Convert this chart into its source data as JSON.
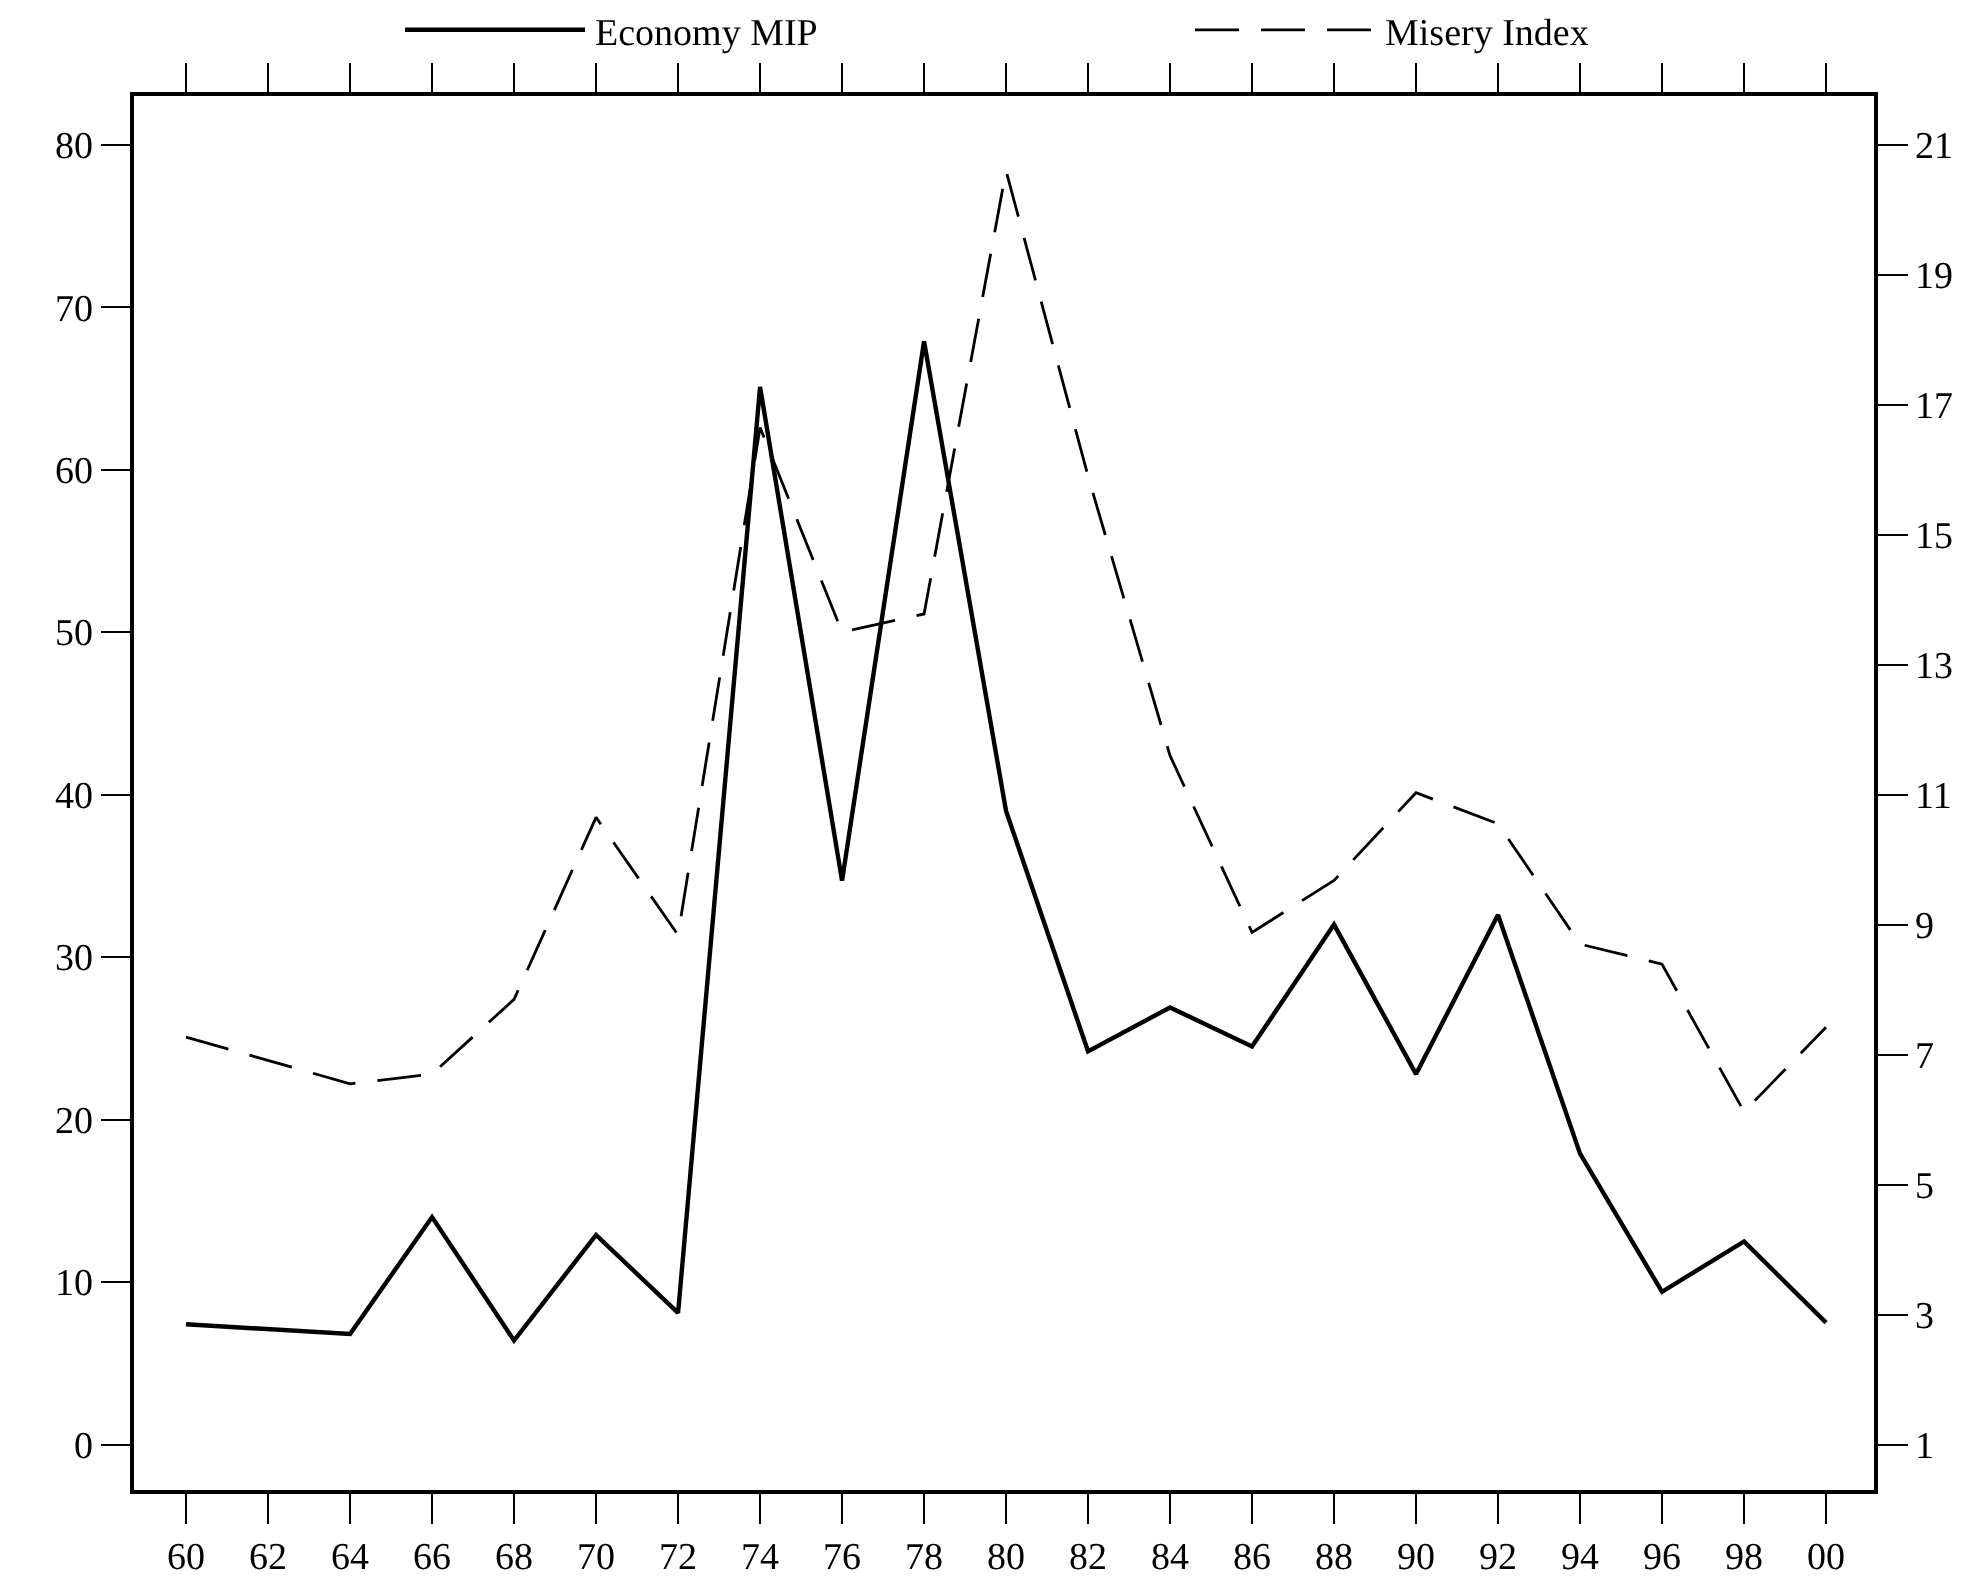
{
  "chart_data": {
    "type": "line",
    "x": [
      1960,
      1964,
      1966,
      1968,
      1970,
      1972,
      1974,
      1976,
      1978,
      1980,
      1982,
      1984,
      1986,
      1988,
      1990,
      1992,
      1994,
      1996,
      1998,
      2000
    ],
    "series": [
      {
        "name": "Economy MIP",
        "color": "#000000",
        "line_style": "solid",
        "values": [
          7.4,
          6.8,
          14.0,
          6.4,
          12.9,
          8.1,
          65.1,
          34.7,
          67.9,
          39.0,
          24.2,
          26.9,
          24.5,
          32.0,
          22.8,
          32.6,
          17.9,
          9.4,
          12.5,
          7.5
        ]
      },
      {
        "name": "Misery Index",
        "color": "#000000",
        "line_style": "dashed",
        "axis": "y2",
        "values": [
          7.27,
          6.55,
          6.7,
          7.85,
          10.65,
          8.84,
          16.65,
          13.5,
          13.78,
          20.6,
          15.9,
          11.6,
          8.88,
          9.68,
          11.03,
          10.55,
          8.7,
          8.39,
          6.12,
          7.42
        ]
      }
    ],
    "xlim": [
      1958.73,
      2001.17
    ],
    "xticks": [
      {
        "value": 1960,
        "label": "60"
      },
      {
        "value": 1962,
        "label": "62"
      },
      {
        "value": 1964,
        "label": "64"
      },
      {
        "value": 1966,
        "label": "66"
      },
      {
        "value": 1968,
        "label": "68"
      },
      {
        "value": 1970,
        "label": "70"
      },
      {
        "value": 1972,
        "label": "72"
      },
      {
        "value": 1974,
        "label": "74"
      },
      {
        "value": 1976,
        "label": "76"
      },
      {
        "value": 1978,
        "label": "78"
      },
      {
        "value": 1980,
        "label": "80"
      },
      {
        "value": 1982,
        "label": "82"
      },
      {
        "value": 1984,
        "label": "84"
      },
      {
        "value": 1986,
        "label": "86"
      },
      {
        "value": 1988,
        "label": "88"
      },
      {
        "value": 1990,
        "label": "90"
      },
      {
        "value": 1992,
        "label": "92"
      },
      {
        "value": 1994,
        "label": "94"
      },
      {
        "value": 1996,
        "label": "96"
      },
      {
        "value": 1998,
        "label": "98"
      },
      {
        "value": 2000,
        "label": "00"
      }
    ],
    "ylim": [
      -2.8,
      83
    ],
    "yticks": [
      0,
      10,
      20,
      30,
      40,
      50,
      60,
      70,
      80
    ],
    "y2lim": [
      0.3,
      21.75
    ],
    "y2ticks": [
      1,
      3,
      5,
      7,
      9,
      11,
      13,
      15,
      17,
      19,
      21
    ],
    "legend": "top",
    "marker": "none"
  }
}
